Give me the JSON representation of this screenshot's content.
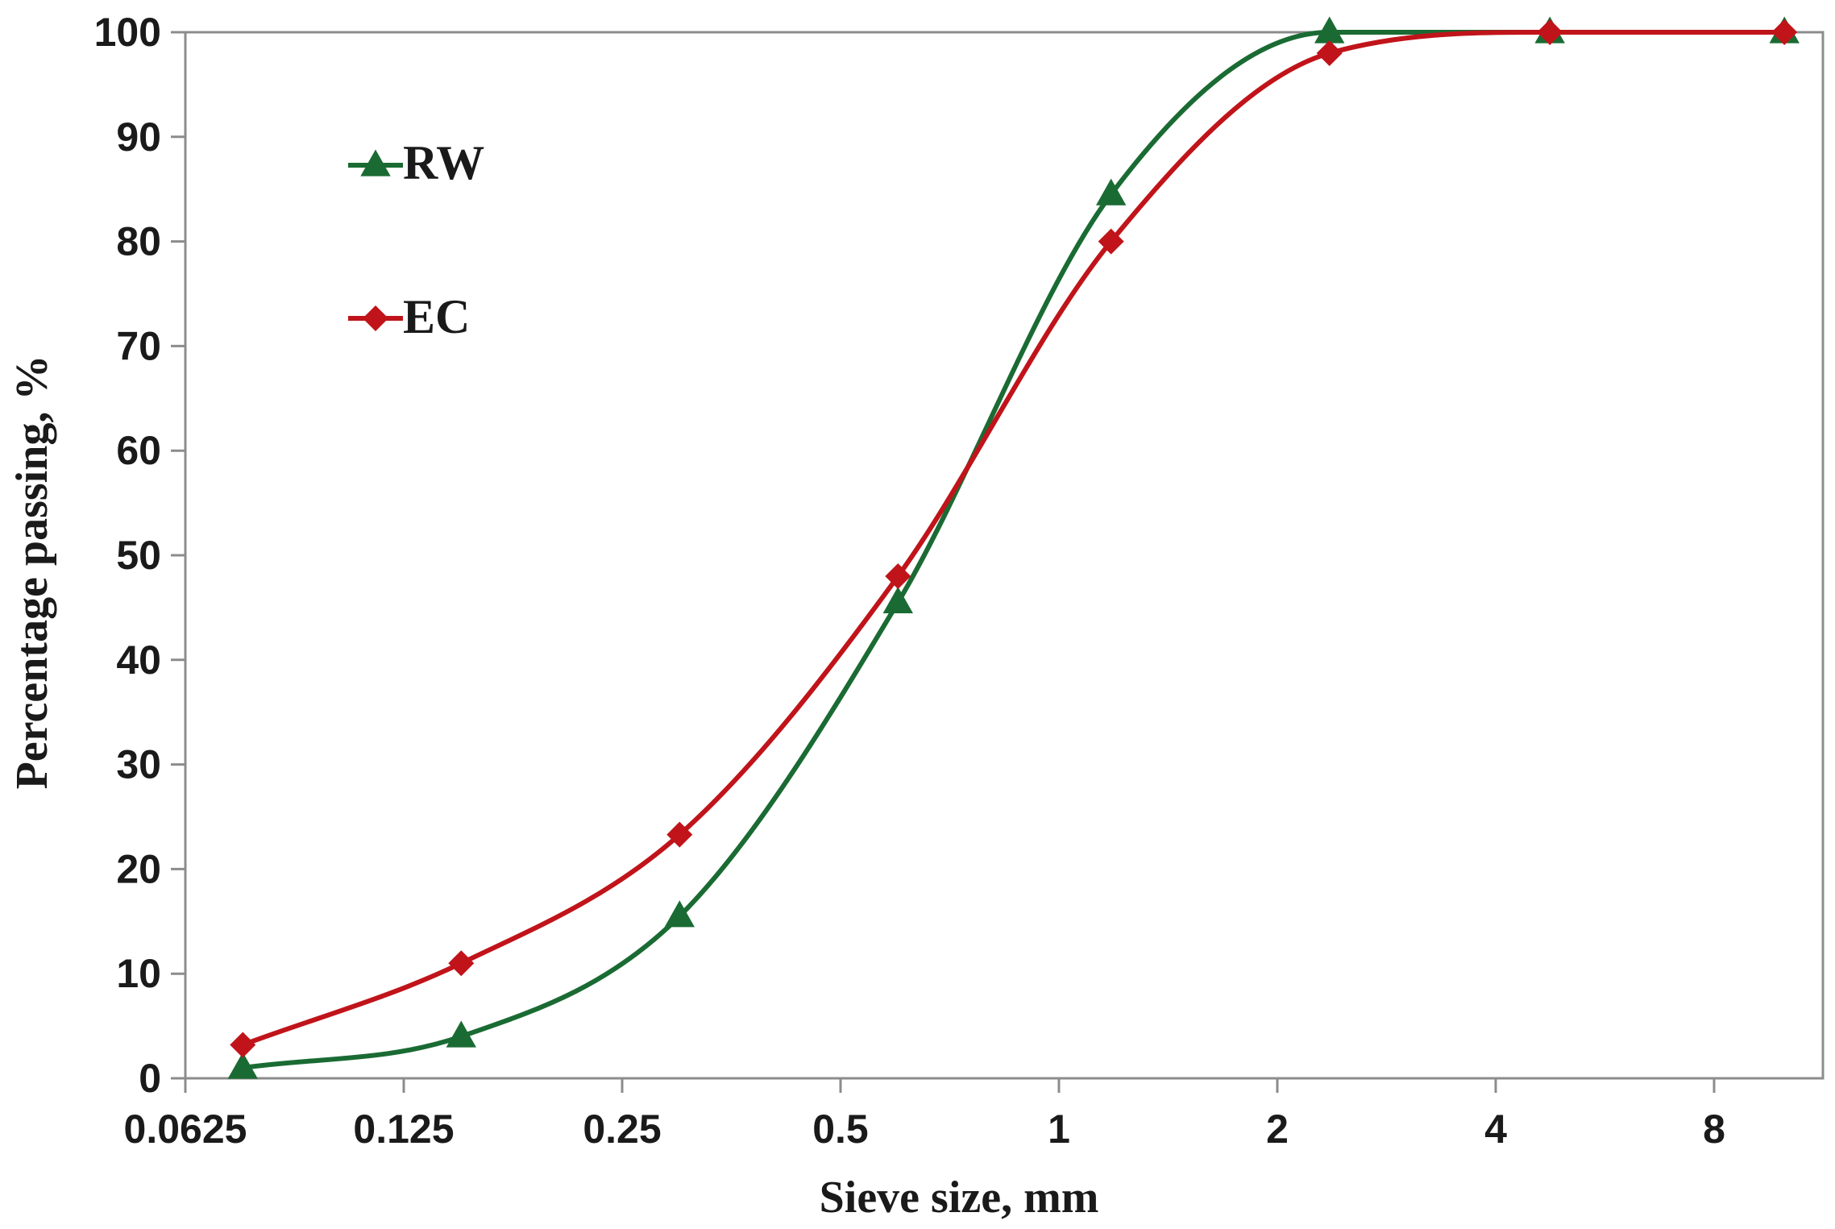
{
  "chart_data": {
    "type": "line",
    "title": "",
    "xlabel": "Sieve size, mm",
    "ylabel": "Percentage passing, %",
    "x_scale": "log2",
    "xlim": [
      0.0625,
      11.3
    ],
    "ylim": [
      0,
      100
    ],
    "x_ticks": [
      0.0625,
      0.125,
      0.25,
      0.5,
      1,
      2,
      4,
      8
    ],
    "x_tick_labels": [
      "0.0625",
      "0.125",
      "0.25",
      "0.5",
      "1",
      "2",
      "4",
      "8"
    ],
    "y_ticks": [
      0,
      10,
      20,
      30,
      40,
      50,
      60,
      70,
      80,
      90,
      100
    ],
    "y_tick_labels": [
      "0",
      "10",
      "20",
      "30",
      "40",
      "50",
      "60",
      "70",
      "80",
      "90",
      "100"
    ],
    "grid": false,
    "legend_position": "top-left",
    "series": [
      {
        "name": "RW",
        "color": "#1a6b33",
        "marker": "triangle",
        "x": [
          0.075,
          0.15,
          0.3,
          0.6,
          1.18,
          2.36,
          4.75,
          10
        ],
        "values": [
          1,
          4,
          15.5,
          45.5,
          84.5,
          100,
          100,
          100
        ]
      },
      {
        "name": "EC",
        "color": "#c0141a",
        "marker": "diamond",
        "x": [
          0.075,
          0.15,
          0.3,
          0.6,
          1.18,
          2.36,
          4.75,
          10
        ],
        "values": [
          3.2,
          11,
          23.3,
          48,
          80,
          98,
          100,
          100
        ]
      }
    ]
  }
}
